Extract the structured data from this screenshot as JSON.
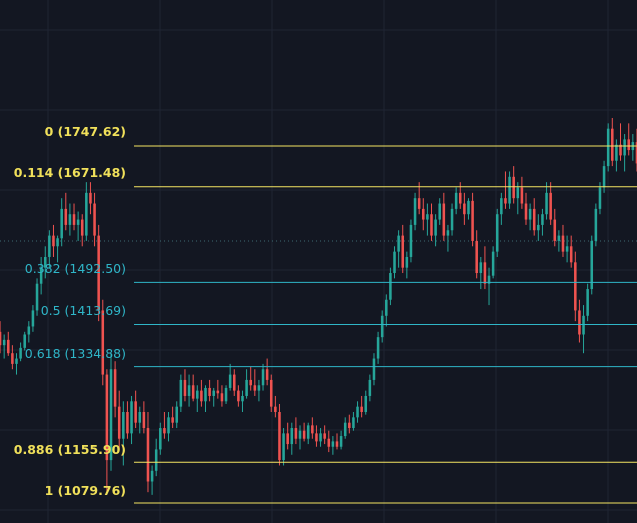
{
  "colors": {
    "background": "#131722",
    "grid": "#1f2433",
    "up_candle": "#26a69a",
    "down_candle": "#ef5350",
    "fib_yellow": "#f5e663",
    "fib_cyan": "#2fb6c8",
    "fib_label_yellow": "#f0e05a",
    "fib_label_cyan": "#2fb6c8",
    "crosshair": "#3d6a72"
  },
  "fib_levels": [
    {
      "label": "0 (1747.62)",
      "ratio": 0,
      "price": 1747.62,
      "color": "yellow"
    },
    {
      "label": "0.114 (1671.48)",
      "ratio": 0.114,
      "price": 1671.48,
      "color": "yellow"
    },
    {
      "label": "0.382 (1492.50)",
      "ratio": 0.382,
      "price": 1492.5,
      "color": "cyan"
    },
    {
      "label": "0.5 (1413.69)",
      "ratio": 0.5,
      "price": 1413.69,
      "color": "cyan"
    },
    {
      "label": "0.618 (1334.88)",
      "ratio": 0.618,
      "price": 1334.88,
      "color": "cyan"
    },
    {
      "label": "0.886 (1155.90)",
      "ratio": 0.886,
      "price": 1155.9,
      "color": "yellow"
    },
    {
      "label": "1 (1079.76)",
      "ratio": 1,
      "price": 1079.76,
      "color": "yellow"
    }
  ],
  "chart_data": {
    "type": "candlestick",
    "price_range": [
      1060,
      1850
    ],
    "crosshair_price": 1570,
    "candles": [
      [
        1400,
        1420,
        1360,
        1375
      ],
      [
        1375,
        1395,
        1350,
        1385
      ],
      [
        1385,
        1400,
        1355,
        1360
      ],
      [
        1360,
        1375,
        1330,
        1340
      ],
      [
        1340,
        1360,
        1320,
        1350
      ],
      [
        1350,
        1380,
        1345,
        1370
      ],
      [
        1370,
        1400,
        1365,
        1395
      ],
      [
        1395,
        1420,
        1380,
        1410
      ],
      [
        1410,
        1450,
        1400,
        1440
      ],
      [
        1440,
        1500,
        1430,
        1490
      ],
      [
        1490,
        1540,
        1470,
        1520
      ],
      [
        1520,
        1560,
        1500,
        1540
      ],
      [
        1540,
        1590,
        1520,
        1580
      ],
      [
        1580,
        1600,
        1540,
        1560
      ],
      [
        1560,
        1580,
        1530,
        1575
      ],
      [
        1575,
        1650,
        1560,
        1630
      ],
      [
        1630,
        1660,
        1590,
        1600
      ],
      [
        1600,
        1640,
        1580,
        1620
      ],
      [
        1620,
        1640,
        1590,
        1600
      ],
      [
        1600,
        1625,
        1570,
        1610
      ],
      [
        1610,
        1620,
        1560,
        1580
      ],
      [
        1580,
        1680,
        1570,
        1660
      ],
      [
        1660,
        1680,
        1620,
        1640
      ],
      [
        1640,
        1660,
        1560,
        1580
      ],
      [
        1580,
        1600,
        1420,
        1440
      ],
      [
        1440,
        1460,
        1300,
        1320
      ],
      [
        1320,
        1330,
        1100,
        1160
      ],
      [
        1160,
        1360,
        1140,
        1330
      ],
      [
        1330,
        1345,
        1240,
        1260
      ],
      [
        1260,
        1290,
        1180,
        1200
      ],
      [
        1200,
        1270,
        1150,
        1250
      ],
      [
        1250,
        1270,
        1200,
        1210
      ],
      [
        1210,
        1280,
        1190,
        1270
      ],
      [
        1270,
        1290,
        1220,
        1230
      ],
      [
        1230,
        1260,
        1210,
        1250
      ],
      [
        1250,
        1270,
        1210,
        1220
      ],
      [
        1220,
        1250,
        1100,
        1120
      ],
      [
        1120,
        1150,
        1095,
        1140
      ],
      [
        1140,
        1200,
        1130,
        1180
      ],
      [
        1180,
        1230,
        1170,
        1220
      ],
      [
        1220,
        1250,
        1200,
        1210
      ],
      [
        1210,
        1250,
        1195,
        1240
      ],
      [
        1240,
        1260,
        1220,
        1230
      ],
      [
        1230,
        1270,
        1220,
        1260
      ],
      [
        1260,
        1320,
        1250,
        1310
      ],
      [
        1310,
        1330,
        1270,
        1280
      ],
      [
        1280,
        1320,
        1260,
        1300
      ],
      [
        1300,
        1320,
        1270,
        1275
      ],
      [
        1275,
        1300,
        1250,
        1290
      ],
      [
        1290,
        1310,
        1260,
        1270
      ],
      [
        1270,
        1300,
        1250,
        1295
      ],
      [
        1295,
        1310,
        1270,
        1280
      ],
      [
        1280,
        1295,
        1260,
        1290
      ],
      [
        1290,
        1310,
        1275,
        1285
      ],
      [
        1285,
        1300,
        1260,
        1270
      ],
      [
        1270,
        1300,
        1265,
        1295
      ],
      [
        1295,
        1340,
        1290,
        1320
      ],
      [
        1320,
        1330,
        1280,
        1290
      ],
      [
        1290,
        1300,
        1260,
        1270
      ],
      [
        1270,
        1290,
        1250,
        1280
      ],
      [
        1280,
        1330,
        1275,
        1310
      ],
      [
        1310,
        1335,
        1290,
        1300
      ],
      [
        1300,
        1330,
        1280,
        1290
      ],
      [
        1290,
        1310,
        1270,
        1300
      ],
      [
        1300,
        1340,
        1290,
        1330
      ],
      [
        1330,
        1350,
        1300,
        1310
      ],
      [
        1310,
        1320,
        1250,
        1260
      ],
      [
        1260,
        1280,
        1240,
        1250
      ],
      [
        1250,
        1265,
        1150,
        1160
      ],
      [
        1160,
        1220,
        1150,
        1210
      ],
      [
        1210,
        1230,
        1180,
        1190
      ],
      [
        1190,
        1230,
        1170,
        1220
      ],
      [
        1220,
        1240,
        1190,
        1200
      ],
      [
        1200,
        1225,
        1180,
        1215
      ],
      [
        1215,
        1230,
        1195,
        1200
      ],
      [
        1200,
        1230,
        1190,
        1225
      ],
      [
        1225,
        1240,
        1200,
        1210
      ],
      [
        1210,
        1225,
        1185,
        1195
      ],
      [
        1195,
        1220,
        1185,
        1210
      ],
      [
        1210,
        1225,
        1190,
        1200
      ],
      [
        1200,
        1215,
        1175,
        1185
      ],
      [
        1185,
        1205,
        1170,
        1195
      ],
      [
        1195,
        1210,
        1180,
        1185
      ],
      [
        1185,
        1215,
        1180,
        1205
      ],
      [
        1205,
        1240,
        1200,
        1230
      ],
      [
        1230,
        1245,
        1210,
        1220
      ],
      [
        1220,
        1250,
        1215,
        1240
      ],
      [
        1240,
        1270,
        1230,
        1260
      ],
      [
        1260,
        1280,
        1240,
        1250
      ],
      [
        1250,
        1290,
        1245,
        1280
      ],
      [
        1280,
        1320,
        1270,
        1310
      ],
      [
        1310,
        1360,
        1300,
        1350
      ],
      [
        1350,
        1400,
        1340,
        1390
      ],
      [
        1390,
        1440,
        1380,
        1430
      ],
      [
        1430,
        1470,
        1410,
        1460
      ],
      [
        1460,
        1520,
        1450,
        1510
      ],
      [
        1510,
        1560,
        1500,
        1550
      ],
      [
        1550,
        1590,
        1520,
        1580
      ],
      [
        1580,
        1600,
        1510,
        1520
      ],
      [
        1520,
        1550,
        1500,
        1540
      ],
      [
        1540,
        1610,
        1530,
        1600
      ],
      [
        1600,
        1660,
        1590,
        1650
      ],
      [
        1650,
        1680,
        1620,
        1630
      ],
      [
        1630,
        1650,
        1590,
        1610
      ],
      [
        1610,
        1640,
        1580,
        1620
      ],
      [
        1620,
        1640,
        1570,
        1580
      ],
      [
        1580,
        1620,
        1560,
        1610
      ],
      [
        1610,
        1650,
        1600,
        1640
      ],
      [
        1640,
        1660,
        1570,
        1580
      ],
      [
        1580,
        1600,
        1550,
        1590
      ],
      [
        1590,
        1640,
        1580,
        1630
      ],
      [
        1630,
        1670,
        1620,
        1660
      ],
      [
        1660,
        1680,
        1630,
        1640
      ],
      [
        1640,
        1660,
        1600,
        1620
      ],
      [
        1620,
        1650,
        1610,
        1645
      ],
      [
        1645,
        1660,
        1560,
        1570
      ],
      [
        1570,
        1590,
        1500,
        1510
      ],
      [
        1510,
        1540,
        1480,
        1530
      ],
      [
        1530,
        1560,
        1480,
        1490
      ],
      [
        1490,
        1520,
        1450,
        1505
      ],
      [
        1505,
        1560,
        1500,
        1550
      ],
      [
        1550,
        1630,
        1540,
        1620
      ],
      [
        1620,
        1660,
        1600,
        1650
      ],
      [
        1650,
        1700,
        1630,
        1640
      ],
      [
        1640,
        1700,
        1630,
        1690
      ],
      [
        1690,
        1710,
        1640,
        1650
      ],
      [
        1650,
        1680,
        1620,
        1670
      ],
      [
        1670,
        1690,
        1630,
        1640
      ],
      [
        1640,
        1660,
        1600,
        1610
      ],
      [
        1610,
        1640,
        1590,
        1630
      ],
      [
        1630,
        1650,
        1580,
        1590
      ],
      [
        1590,
        1620,
        1570,
        1600
      ],
      [
        1600,
        1630,
        1580,
        1620
      ],
      [
        1620,
        1680,
        1610,
        1660
      ],
      [
        1660,
        1680,
        1600,
        1610
      ],
      [
        1610,
        1630,
        1560,
        1570
      ],
      [
        1570,
        1590,
        1550,
        1580
      ],
      [
        1580,
        1600,
        1540,
        1550
      ],
      [
        1550,
        1580,
        1530,
        1560
      ],
      [
        1560,
        1580,
        1520,
        1530
      ],
      [
        1530,
        1550,
        1420,
        1440
      ],
      [
        1440,
        1460,
        1380,
        1395
      ],
      [
        1395,
        1450,
        1360,
        1430
      ],
      [
        1430,
        1490,
        1420,
        1480
      ],
      [
        1480,
        1580,
        1470,
        1570
      ],
      [
        1570,
        1640,
        1560,
        1630
      ],
      [
        1630,
        1680,
        1620,
        1670
      ],
      [
        1670,
        1720,
        1660,
        1710
      ],
      [
        1710,
        1790,
        1700,
        1780
      ],
      [
        1780,
        1800,
        1710,
        1720
      ],
      [
        1720,
        1760,
        1700,
        1750
      ],
      [
        1750,
        1790,
        1720,
        1730
      ],
      [
        1730,
        1770,
        1700,
        1760
      ],
      [
        1760,
        1790,
        1730,
        1740
      ],
      [
        1740,
        1770,
        1720,
        1755
      ],
      [
        1755,
        1780,
        1700,
        1715
      ]
    ]
  }
}
